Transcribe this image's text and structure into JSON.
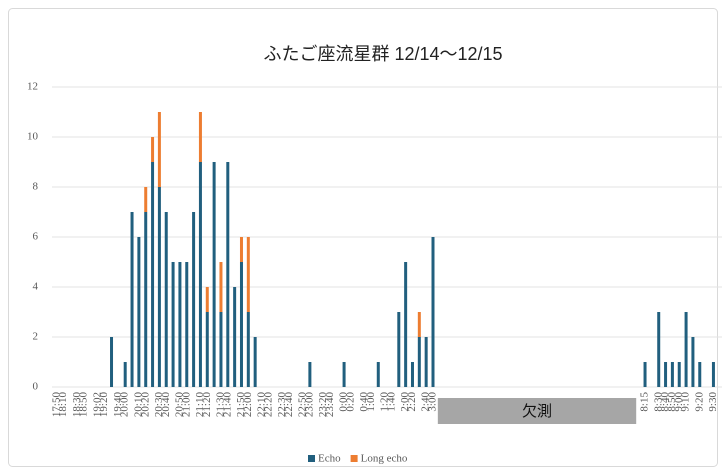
{
  "chart_data": {
    "type": "stacked_bar",
    "title": "ふたご座流星群 12/14〜12/15",
    "annotation": "欠測",
    "categories": [
      "17:50",
      "18:10",
      null,
      "18:30",
      "18:50",
      null,
      "19:02",
      "19:20",
      null,
      "19:40",
      "20:00",
      null,
      "20:10",
      "20:20",
      null,
      "20:30",
      "20:40",
      null,
      "20:50",
      "21:00",
      null,
      "21:10",
      "21:20",
      null,
      "21:30",
      "21:40",
      null,
      "21:50",
      "22:00",
      null,
      "22:10",
      "22:20",
      null,
      "22:30",
      "22:40",
      null,
      "22:50",
      "23:00",
      null,
      "23:20",
      "23:40",
      null,
      "0:00",
      "0:20",
      null,
      "0:40",
      "1:00",
      null,
      "1:20",
      "1:40",
      null,
      "2:00",
      "2:20",
      null,
      "2:40",
      "3:00",
      null,
      null,
      null,
      null,
      null,
      null,
      null,
      null,
      null,
      null,
      null,
      null,
      null,
      null,
      null,
      null,
      null,
      null,
      null,
      null,
      null,
      null,
      null,
      null,
      null,
      null,
      null,
      null,
      null,
      null,
      "8:15",
      null,
      "8:30",
      "8:40",
      "8:50",
      "9:00",
      "9:10",
      null,
      "9:20",
      null,
      "9:30"
    ],
    "series": [
      {
        "name": "Echo",
        "color": "#215f7e",
        "values": [
          0,
          0,
          0,
          0,
          0,
          0,
          0,
          0,
          2,
          0,
          1,
          7,
          6,
          7,
          9,
          8,
          7,
          5,
          5,
          5,
          7,
          9,
          3,
          9,
          3,
          9,
          4,
          5,
          3,
          2,
          0,
          0,
          0,
          0,
          0,
          0,
          0,
          1,
          0,
          0,
          0,
          0,
          1,
          0,
          0,
          0,
          0,
          1,
          0,
          0,
          3,
          5,
          1,
          2,
          2,
          6,
          null,
          null,
          null,
          null,
          null,
          null,
          null,
          null,
          null,
          null,
          null,
          null,
          null,
          null,
          null,
          null,
          null,
          null,
          null,
          null,
          null,
          null,
          null,
          null,
          null,
          null,
          null,
          null,
          null,
          null,
          1,
          0,
          3,
          1,
          1,
          1,
          3,
          2,
          1,
          0,
          1
        ]
      },
      {
        "name": "Long echo",
        "color": "#ed7d31",
        "values": [
          0,
          0,
          0,
          0,
          0,
          0,
          0,
          0,
          0,
          0,
          0,
          0,
          0,
          1,
          1,
          3,
          0,
          0,
          0,
          0,
          0,
          2,
          1,
          0,
          2,
          0,
          0,
          1,
          3,
          0,
          0,
          0,
          0,
          0,
          0,
          0,
          0,
          0,
          0,
          0,
          0,
          0,
          0,
          0,
          0,
          0,
          0,
          0,
          0,
          0,
          0,
          0,
          0,
          1,
          0,
          0,
          null,
          null,
          null,
          null,
          null,
          null,
          null,
          null,
          null,
          null,
          null,
          null,
          null,
          null,
          null,
          null,
          null,
          null,
          null,
          null,
          null,
          null,
          null,
          null,
          null,
          null,
          null,
          null,
          null,
          null,
          0,
          0,
          0,
          0,
          0,
          0,
          0,
          0,
          0,
          0,
          0
        ]
      }
    ],
    "ylim": [
      0,
      12
    ],
    "yticks": [
      0,
      2,
      4,
      6,
      8,
      10,
      12
    ],
    "grid": true,
    "legend": "bottom"
  }
}
